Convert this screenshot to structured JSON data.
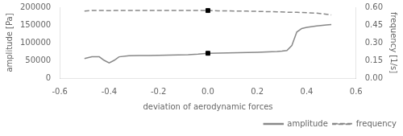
{
  "chart_data": {
    "type": "line",
    "xlabel": "deviation of aerodynamic forces",
    "ylabel": "amplitude [Pa]",
    "y2label": "frequency [1/s]",
    "xlim": [
      -0.6,
      0.6
    ],
    "xticks": [
      -0.6,
      -0.4,
      -0.2,
      {
        "value": 0,
        "label": "0.0"
      },
      0.2,
      0.4,
      0.6
    ],
    "ylim": [
      0,
      200000
    ],
    "yticks": [
      0,
      50000,
      100000,
      150000,
      200000
    ],
    "y2lim": [
      0,
      0.6
    ],
    "y2ticks": [
      {
        "value": 0,
        "label": "0.00"
      },
      0.15,
      {
        "value": 0.3,
        "label": "0.30"
      },
      0.45,
      {
        "value": 0.6,
        "label": "0.60"
      }
    ],
    "grid": false,
    "legend": "lower right",
    "series": [
      {
        "name": "amplitude",
        "type": "line",
        "color": "#888888",
        "line_style": "solid",
        "x": [
          -0.5,
          -0.47,
          -0.44,
          -0.42,
          -0.4,
          -0.38,
          -0.36,
          -0.32,
          -0.28,
          -0.24,
          -0.2,
          -0.16,
          -0.12,
          -0.08,
          -0.04,
          0.0,
          0.04,
          0.08,
          0.12,
          0.16,
          0.2,
          0.24,
          0.28,
          0.3,
          0.32,
          0.34,
          0.36,
          0.38,
          0.4,
          0.44,
          0.48,
          0.5
        ],
        "values": [
          55000,
          60000,
          60000,
          50000,
          43000,
          50000,
          60000,
          63000,
          63500,
          63500,
          64000,
          65000,
          65500,
          66000,
          67500,
          70000,
          70500,
          71000,
          71500,
          72000,
          73000,
          74000,
          75000,
          76000,
          78000,
          92000,
          130000,
          140000,
          143000,
          147000,
          150000,
          151000
        ]
      },
      {
        "type": "scatter",
        "color": "#000000",
        "marker": "square",
        "x": [
          0.0
        ],
        "values": [
          70000
        ]
      },
      {
        "name": "frequency",
        "type": "line",
        "color": "#888888",
        "line_style": "dashed",
        "axis": "y2",
        "x": [
          -0.5,
          -0.47,
          -0.44,
          -0.42,
          -0.4,
          -0.38,
          -0.36,
          -0.32,
          -0.28,
          -0.24,
          -0.2,
          -0.16,
          -0.12,
          -0.08,
          -0.04,
          0.0,
          0.04,
          0.08,
          0.12,
          0.16,
          0.2,
          0.24,
          0.28,
          0.32,
          0.36,
          0.4,
          0.44,
          0.48,
          0.5
        ],
        "values": [
          0.567,
          0.573,
          0.573,
          0.572,
          0.571,
          0.572,
          0.572,
          0.572,
          0.572,
          0.572,
          0.572,
          0.572,
          0.572,
          0.572,
          0.572,
          0.572,
          0.57,
          0.569,
          0.568,
          0.567,
          0.565,
          0.563,
          0.561,
          0.558,
          0.557,
          0.554,
          0.55,
          0.541,
          0.535
        ]
      },
      {
        "type": "scatter",
        "color": "#000000",
        "marker": "square",
        "axis": "y2",
        "x": [
          0.0
        ],
        "values": [
          0.572
        ]
      }
    ]
  }
}
